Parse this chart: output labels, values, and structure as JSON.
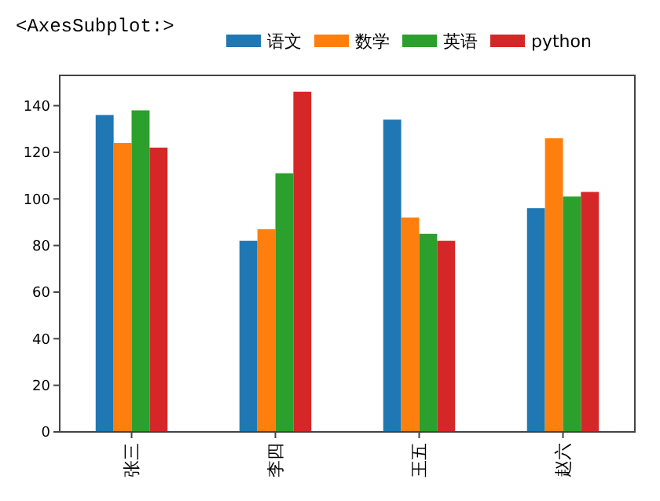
{
  "chart_data": {
    "type": "bar",
    "annotations": [
      "<AxesSubplot:>"
    ],
    "categories": [
      "张三",
      "李四",
      "王五",
      "赵六"
    ],
    "series": [
      {
        "name": "语文",
        "color": "#1f77b4",
        "values": [
          136,
          82,
          134,
          96
        ]
      },
      {
        "name": "数学",
        "color": "#ff7f0e",
        "values": [
          124,
          87,
          92,
          126
        ]
      },
      {
        "name": "英语",
        "color": "#2ca02c",
        "values": [
          138,
          111,
          85,
          101
        ]
      },
      {
        "name": "python",
        "color": "#d62728",
        "values": [
          122,
          146,
          82,
          103
        ]
      }
    ],
    "ylim": [
      0,
      153
    ],
    "yticks": [
      0,
      20,
      40,
      60,
      80,
      100,
      120,
      140
    ],
    "grid": false,
    "legend": "top"
  }
}
